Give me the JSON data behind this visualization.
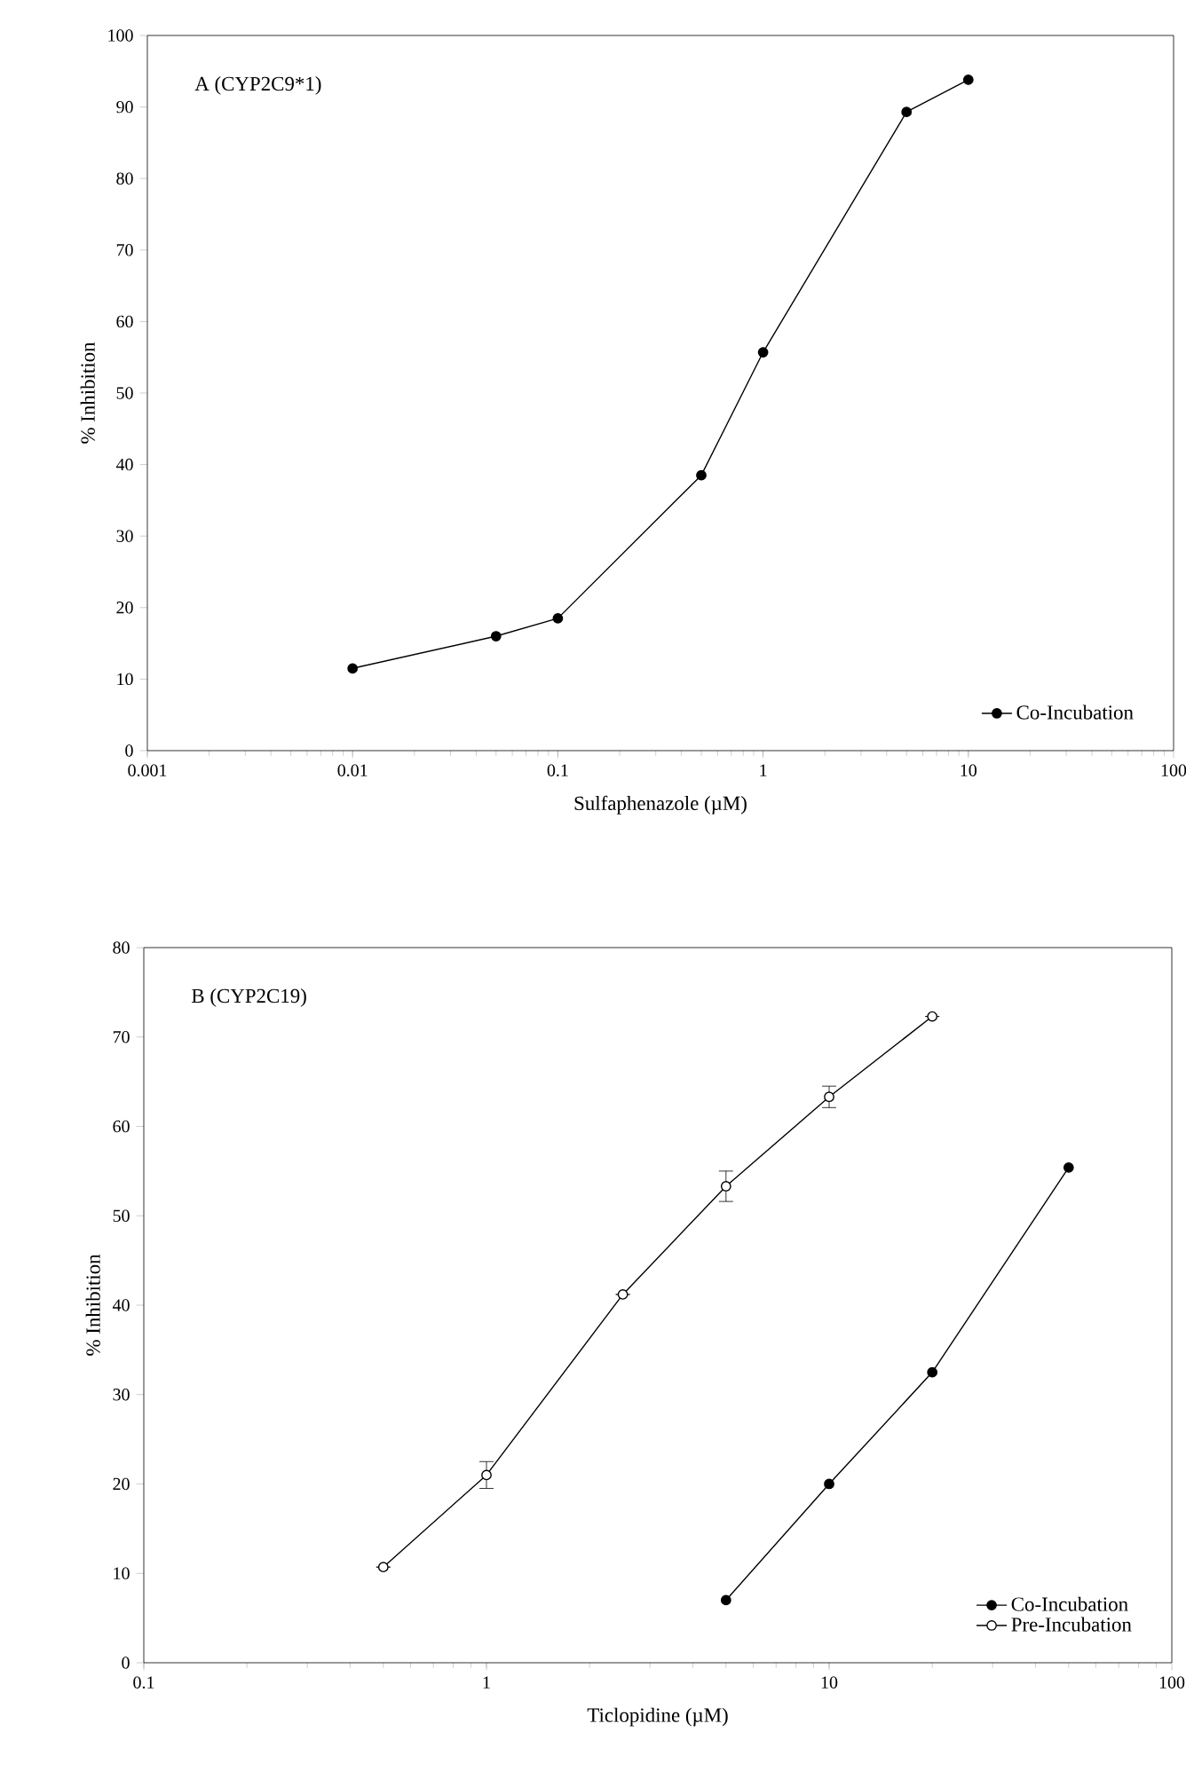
{
  "chart_data": [
    {
      "type": "line",
      "xlabel": "Sulfaphenazole (µM)",
      "ylabel": "% Inhibition",
      "annotations": [
        "A  (CYP2C9*1)"
      ],
      "log": "x",
      "xlim": [
        0.001,
        100
      ],
      "xticks": [
        0.001,
        0.01,
        0.1,
        1,
        10,
        100
      ],
      "ylim": [
        0,
        100
      ],
      "yticks": [
        0,
        10,
        20,
        30,
        40,
        50,
        60,
        70,
        80,
        90,
        100
      ],
      "grid": false,
      "legend": "bottom right",
      "marker": "circle",
      "line_style": "solid",
      "series": [
        {
          "name": "Co-Incubation",
          "color": "#000000",
          "x": [
            0.01,
            0.05,
            0.1,
            0.5,
            1,
            5,
            10
          ],
          "values": [
            11.5,
            16,
            18.5,
            38.5,
            55.7,
            89.3,
            93.8
          ]
        }
      ]
    },
    {
      "type": "line",
      "xlabel": "Ticlopidine (µM)",
      "ylabel": "% Inhibition",
      "annotations": [
        "B  (CYP2C19)"
      ],
      "log": "x",
      "xlim": [
        0.1,
        100
      ],
      "xticks": [
        0.1,
        1,
        10,
        100
      ],
      "ylim": [
        0,
        80
      ],
      "yticks": [
        0,
        10,
        20,
        30,
        40,
        50,
        60,
        70,
        80
      ],
      "grid": false,
      "legend": "bottom right",
      "marker": "circle",
      "line_style": "solid",
      "series": [
        {
          "name": "Co-Incubation",
          "color": "#000000",
          "x": [
            5,
            10,
            20,
            50
          ],
          "values": [
            7,
            20,
            32.5,
            55.4
          ]
        },
        {
          "name": "Pre-Incubation",
          "color": "#ffffff",
          "x": [
            0.5,
            1,
            2.5,
            5,
            10,
            20
          ],
          "values": [
            10.7,
            21,
            41.2,
            53.3,
            63.3,
            72.3
          ],
          "errors": [
            null,
            1.5,
            null,
            1.7,
            1.2,
            null
          ]
        }
      ]
    }
  ]
}
